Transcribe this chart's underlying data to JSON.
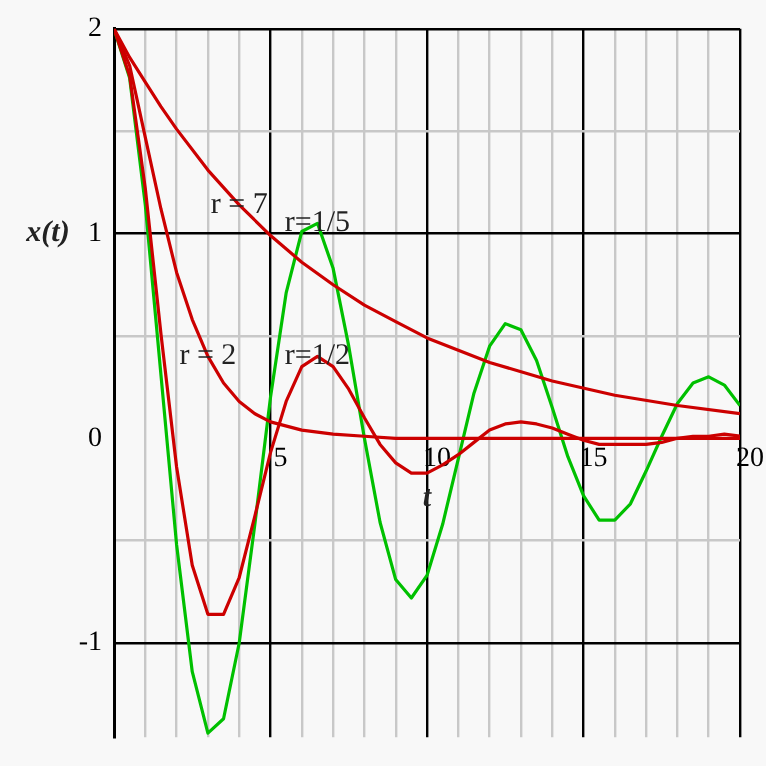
{
  "chart_data": {
    "type": "line",
    "xlabel": "t",
    "ylabel": "x(t)",
    "xlim": [
      0,
      20
    ],
    "ylim": [
      -1.46,
      2
    ],
    "xticks": [
      {
        "value": 1,
        "label": null
      },
      {
        "value": 2,
        "label": null
      },
      {
        "value": 3,
        "label": null
      },
      {
        "value": 4,
        "label": null
      },
      5,
      {
        "value": 6,
        "label": null
      },
      {
        "value": 7,
        "label": null
      },
      {
        "value": 8,
        "label": null
      },
      {
        "value": 9,
        "label": null
      },
      10,
      {
        "value": 11,
        "label": null
      },
      {
        "value": 12,
        "label": null
      },
      {
        "value": 13,
        "label": null
      },
      {
        "value": 14,
        "label": null
      },
      15,
      {
        "value": 16,
        "label": null
      },
      {
        "value": 17,
        "label": null
      },
      {
        "value": 18,
        "label": null
      },
      {
        "value": 19,
        "label": null
      },
      20
    ],
    "yticks": [
      -1,
      {
        "value": -0.5,
        "label": null
      },
      0,
      {
        "value": 0.5,
        "label": null
      },
      1,
      {
        "value": 1.5,
        "label": null
      },
      2
    ],
    "grid": true,
    "marker": "none",
    "annotations": [
      {
        "text": "r = 7",
        "x": 4,
        "y": 1.14
      },
      {
        "text": "r=1/5",
        "x": 6.5,
        "y": 1.05
      },
      {
        "text": "r = 2",
        "x": 3,
        "y": 0.4
      },
      {
        "text": "r=1/2",
        "x": 6.5,
        "y": 0.4
      }
    ],
    "series": [
      {
        "color": "#cc0000",
        "x": [
          0,
          0.5,
          1,
          1.5,
          2,
          3,
          4,
          5,
          6,
          7,
          8,
          9,
          10,
          12,
          14,
          16,
          18,
          20
        ],
        "values": [
          2,
          1.86,
          1.74,
          1.62,
          1.51,
          1.31,
          1.14,
          0.99,
          0.86,
          0.75,
          0.65,
          0.57,
          0.49,
          0.37,
          0.28,
          0.21,
          0.16,
          0.12
        ]
      },
      {
        "color": "#cc0000",
        "x": [
          0,
          0.5,
          1,
          1.5,
          2,
          2.5,
          3,
          3.5,
          4,
          4.5,
          5,
          6,
          7,
          8,
          9,
          10,
          12,
          14,
          16,
          18,
          20
        ],
        "values": [
          2,
          1.82,
          1.47,
          1.12,
          0.81,
          0.58,
          0.4,
          0.27,
          0.18,
          0.12,
          0.08,
          0.04,
          0.02,
          0.01,
          0,
          0,
          0,
          0,
          0,
          0,
          0
        ]
      },
      {
        "color": "#cc0000",
        "x": [
          0,
          0.5,
          1,
          1.5,
          2,
          2.5,
          3,
          3.5,
          4,
          4.5,
          5,
          5.5,
          6,
          6.5,
          7,
          7.5,
          8,
          8.5,
          9,
          9.5,
          10,
          10.5,
          11,
          11.5,
          12,
          12.5,
          13,
          13.5,
          14,
          14.5,
          15,
          15.5,
          16,
          16.5,
          17,
          17.5,
          18,
          18.5,
          19,
          19.5,
          20
        ],
        "values": [
          2,
          1.77,
          1.22,
          0.51,
          -0.14,
          -0.62,
          -0.86,
          -0.86,
          -0.68,
          -0.38,
          -0.07,
          0.18,
          0.35,
          0.4,
          0.35,
          0.24,
          0.1,
          -0.03,
          -0.12,
          -0.17,
          -0.17,
          -0.13,
          -0.08,
          -0.02,
          0.04,
          0.07,
          0.08,
          0.07,
          0.05,
          0.02,
          -0.01,
          -0.03,
          -0.03,
          -0.03,
          -0.03,
          -0.02,
          0,
          0.01,
          0.01,
          0.02,
          0.01
        ]
      },
      {
        "color": "#00c000",
        "x": [
          0,
          0.5,
          1,
          1.5,
          2,
          2.5,
          3,
          3.5,
          4,
          4.5,
          5,
          5.5,
          6,
          6.5,
          7,
          7.5,
          8,
          8.5,
          9,
          9.5,
          10,
          10.5,
          11,
          11.5,
          12,
          12.5,
          13,
          13.5,
          14,
          14.5,
          15,
          15.5,
          16,
          16.5,
          17,
          17.5,
          18,
          18.5,
          19,
          19.5,
          20
        ],
        "values": [
          2,
          1.76,
          1.14,
          0.31,
          -0.52,
          -1.14,
          -1.44,
          -1.37,
          -1,
          -0.42,
          0.2,
          0.71,
          1.01,
          1.05,
          0.83,
          0.45,
          0,
          -0.41,
          -0.69,
          -0.78,
          -0.67,
          -0.42,
          -0.1,
          0.22,
          0.45,
          0.56,
          0.53,
          0.38,
          0.15,
          -0.09,
          -0.28,
          -0.4,
          -0.4,
          -0.32,
          -0.16,
          0.01,
          0.17,
          0.27,
          0.3,
          0.26,
          0.16
        ]
      }
    ]
  }
}
